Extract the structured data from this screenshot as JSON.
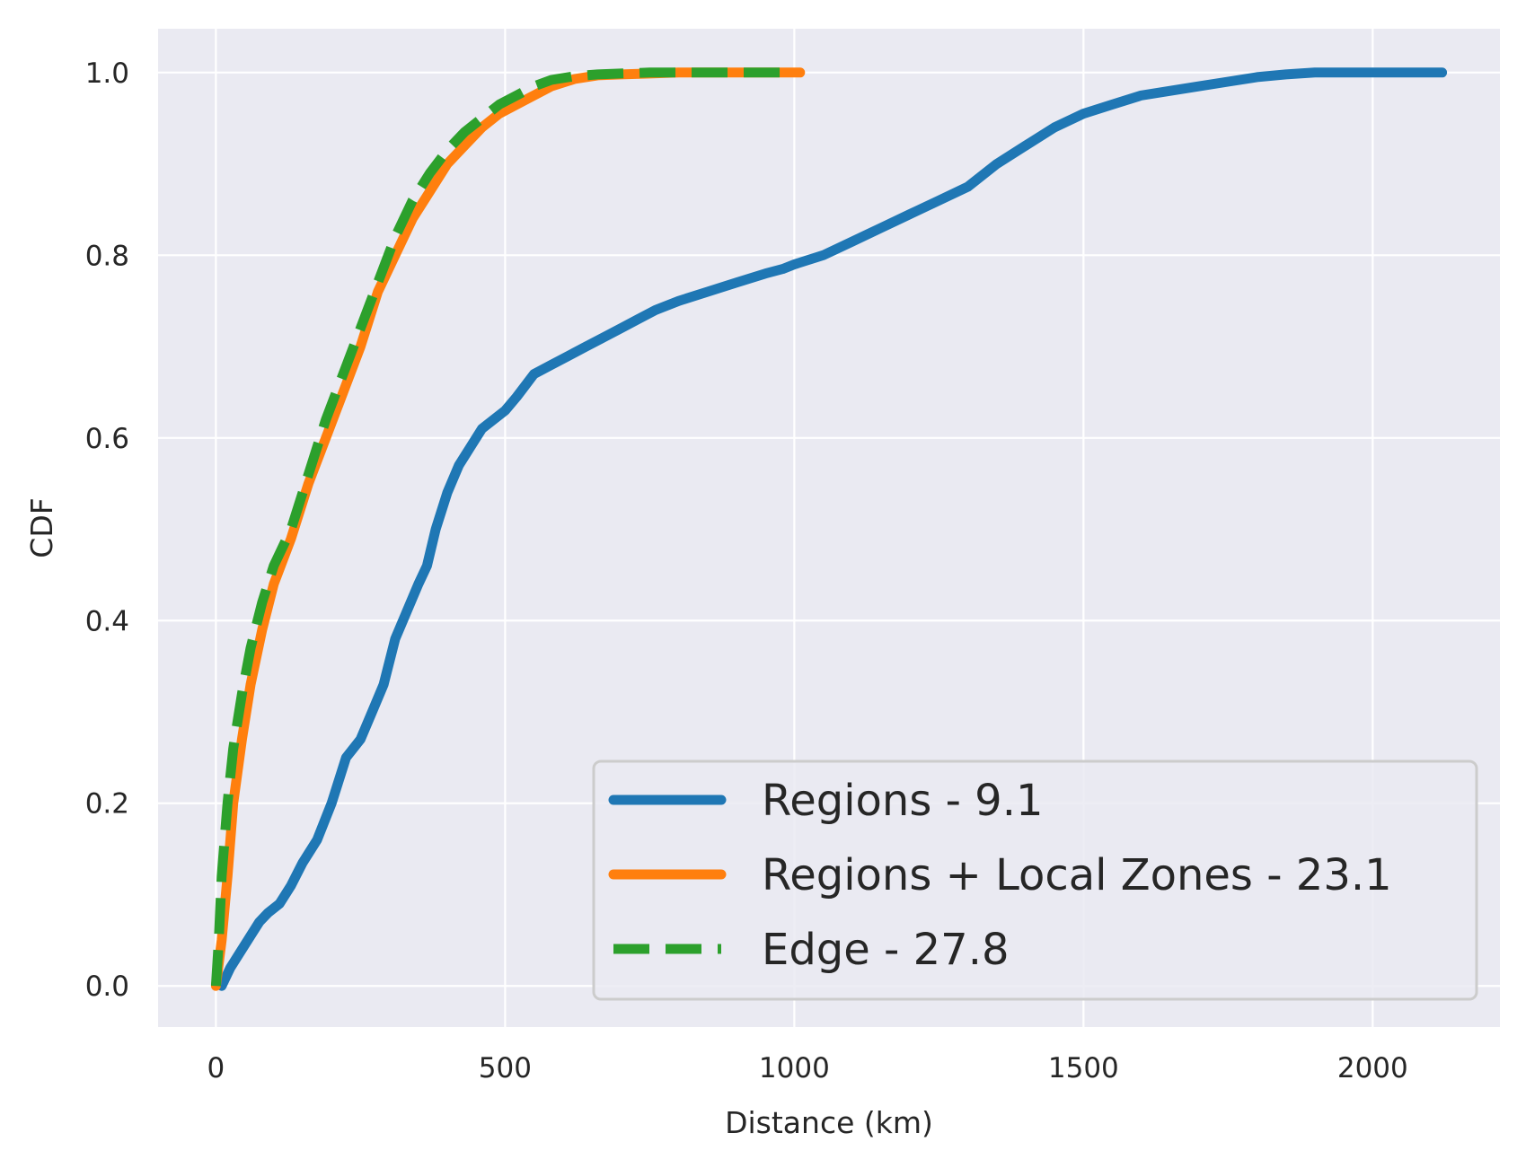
{
  "chart_data": {
    "type": "line",
    "xlabel": "Distance (km)",
    "ylabel": "CDF",
    "xlim": [
      -100,
      2220
    ],
    "ylim": [
      -0.045,
      1.048
    ],
    "x_ticks": [
      0,
      500,
      1000,
      1500,
      2000
    ],
    "y_ticks": [
      0.0,
      0.2,
      0.4,
      0.6,
      0.8,
      1.0
    ],
    "x_tick_labels": [
      "0",
      "500",
      "1000",
      "1500",
      "2000"
    ],
    "y_tick_labels": [
      "0.0",
      "0.2",
      "0.4",
      "0.6",
      "0.8",
      "1.0"
    ],
    "grid": true,
    "background": "#eaeaf2",
    "legend_position": "lower-right",
    "series": [
      {
        "name": "Regions - 9.1",
        "color": "#1f77b4",
        "style": "solid",
        "x": [
          10,
          25,
          40,
          60,
          75,
          90,
          110,
          130,
          150,
          175,
          200,
          225,
          250,
          270,
          290,
          310,
          330,
          350,
          365,
          380,
          400,
          420,
          440,
          460,
          480,
          500,
          520,
          550,
          580,
          610,
          640,
          670,
          700,
          730,
          760,
          800,
          850,
          900,
          950,
          980,
          1000,
          1050,
          1100,
          1150,
          1200,
          1250,
          1300,
          1350,
          1400,
          1450,
          1500,
          1550,
          1600,
          1650,
          1700,
          1750,
          1800,
          1850,
          1900,
          1950,
          2000,
          2050,
          2100,
          2120
        ],
        "y": [
          0.0,
          0.02,
          0.035,
          0.055,
          0.07,
          0.08,
          0.09,
          0.11,
          0.135,
          0.16,
          0.2,
          0.25,
          0.27,
          0.3,
          0.33,
          0.38,
          0.41,
          0.44,
          0.46,
          0.5,
          0.54,
          0.57,
          0.59,
          0.61,
          0.62,
          0.63,
          0.645,
          0.67,
          0.68,
          0.69,
          0.7,
          0.71,
          0.72,
          0.73,
          0.74,
          0.75,
          0.76,
          0.77,
          0.78,
          0.785,
          0.79,
          0.8,
          0.815,
          0.83,
          0.845,
          0.86,
          0.875,
          0.9,
          0.92,
          0.94,
          0.955,
          0.965,
          0.975,
          0.98,
          0.985,
          0.99,
          0.995,
          0.998,
          1.0,
          1.0,
          1.0,
          1.0,
          1.0,
          1.0
        ]
      },
      {
        "name": "Regions + Local Zones - 23.1",
        "color": "#ff7f0e",
        "style": "solid",
        "x": [
          0,
          10,
          20,
          30,
          45,
          60,
          80,
          100,
          130,
          160,
          190,
          220,
          250,
          280,
          310,
          340,
          370,
          400,
          430,
          460,
          490,
          520,
          550,
          580,
          620,
          660,
          700,
          750,
          800,
          900,
          1000,
          1010
        ],
        "y": [
          0.0,
          0.05,
          0.12,
          0.2,
          0.27,
          0.33,
          0.39,
          0.44,
          0.49,
          0.55,
          0.6,
          0.65,
          0.7,
          0.76,
          0.8,
          0.84,
          0.87,
          0.9,
          0.92,
          0.94,
          0.955,
          0.965,
          0.975,
          0.985,
          0.993,
          0.997,
          0.998,
          0.999,
          1.0,
          1.0,
          1.0,
          1.0
        ]
      },
      {
        "name": "Edge - 27.8",
        "color": "#2ca02c",
        "style": "dashed",
        "x": [
          0,
          5,
          10,
          20,
          30,
          45,
          60,
          80,
          100,
          130,
          160,
          190,
          220,
          250,
          280,
          310,
          340,
          370,
          400,
          430,
          460,
          490,
          520,
          550,
          580,
          620,
          660,
          700,
          750,
          800,
          900,
          1000
        ],
        "y": [
          0.0,
          0.05,
          0.12,
          0.2,
          0.26,
          0.32,
          0.37,
          0.42,
          0.46,
          0.5,
          0.56,
          0.62,
          0.67,
          0.72,
          0.77,
          0.82,
          0.86,
          0.89,
          0.915,
          0.935,
          0.95,
          0.965,
          0.975,
          0.985,
          0.992,
          0.996,
          0.998,
          0.999,
          1.0,
          1.0,
          1.0,
          1.0
        ]
      }
    ]
  }
}
